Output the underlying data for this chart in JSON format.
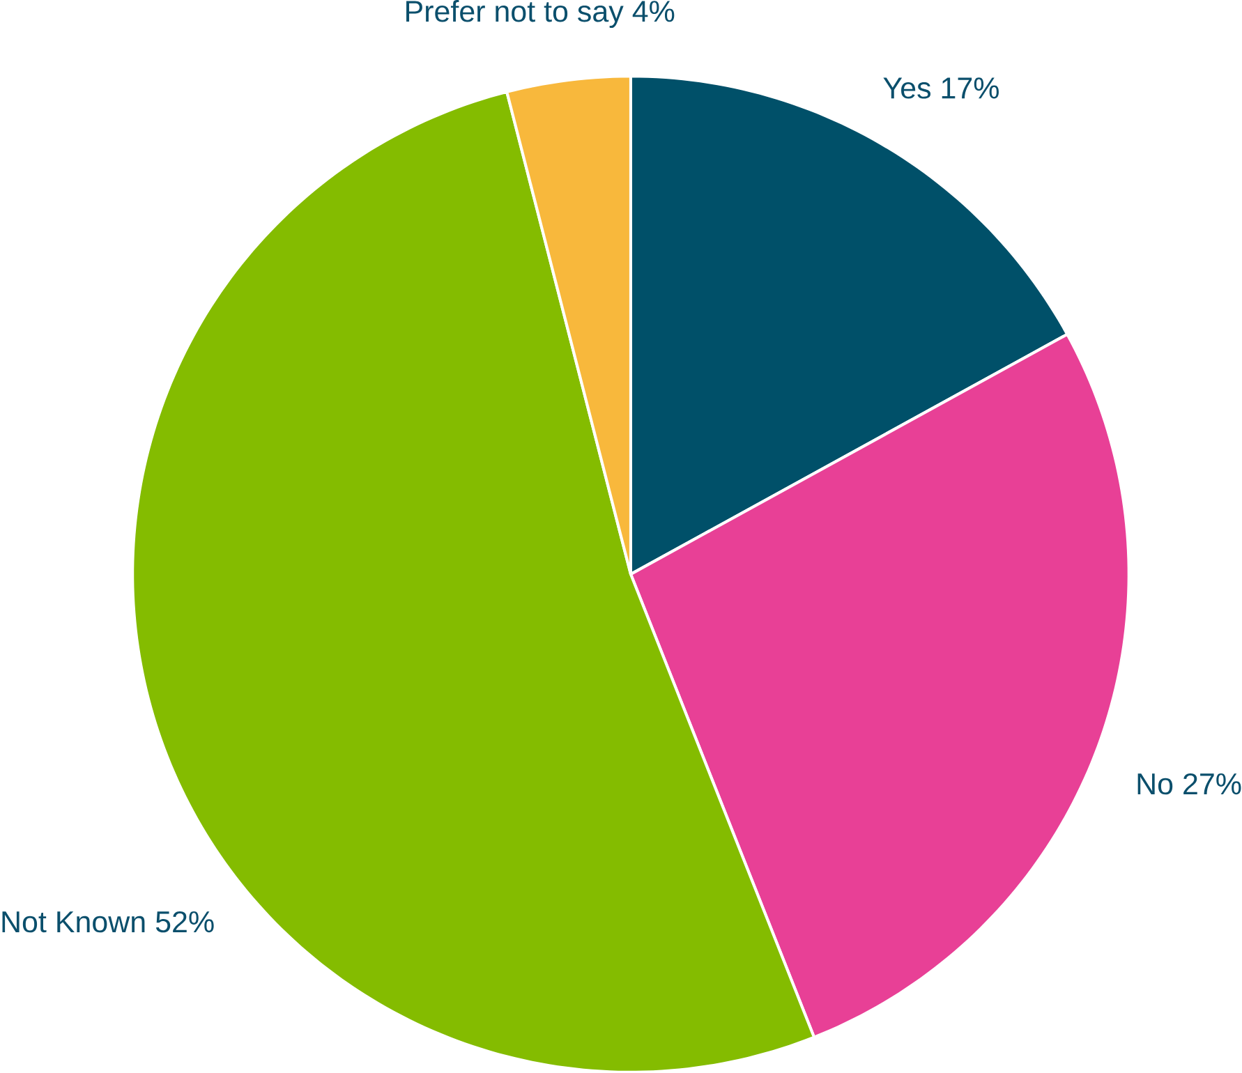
{
  "chart_data": {
    "type": "pie",
    "categories": [
      "Yes",
      "No",
      "Not Known",
      "Prefer not to say"
    ],
    "values": [
      17,
      27,
      52,
      4
    ],
    "colors": [
      "#005069",
      "#e84096",
      "#84bc00",
      "#f8b83c"
    ],
    "value_labels": [
      "17%",
      "27%",
      "52%",
      "4%"
    ]
  }
}
